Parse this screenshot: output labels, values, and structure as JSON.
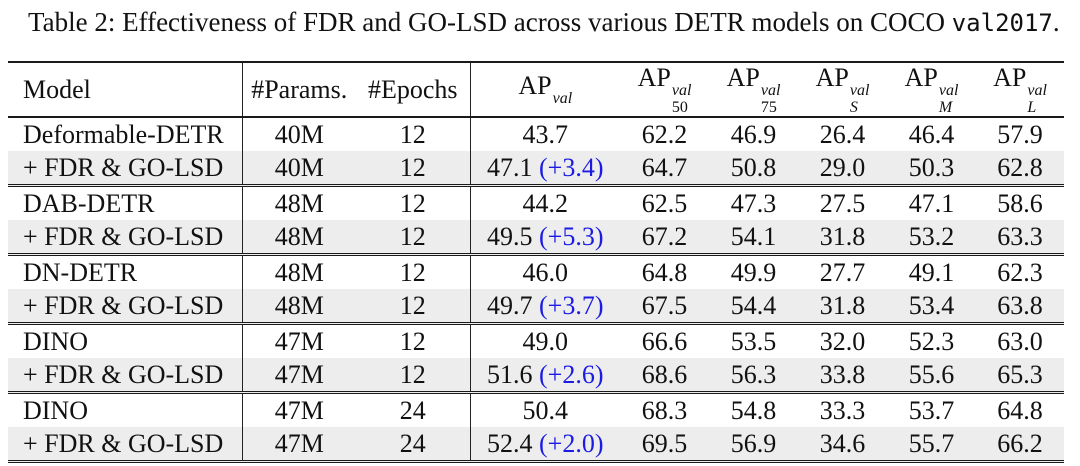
{
  "caption": {
    "prefix": "Table 2: Effectiveness of FDR and GO-LSD across various DETR models on COCO ",
    "code": "val2017",
    "suffix": "."
  },
  "colors": {
    "delta_blue": "#1b1be4",
    "row_shade": "#ededed",
    "rule": "#1a1a1a"
  },
  "table": {
    "columns": [
      "Model",
      "#Params.",
      "#Epochs"
    ],
    "ap_headers": [
      {
        "base": "AP",
        "sup": "val",
        "sub": "",
        "italic_sub": false
      },
      {
        "base": "AP",
        "sup": "val",
        "sub": "50",
        "italic_sub": false
      },
      {
        "base": "AP",
        "sup": "val",
        "sub": "75",
        "italic_sub": false
      },
      {
        "base": "AP",
        "sup": "val",
        "sub": "S",
        "italic_sub": true
      },
      {
        "base": "AP",
        "sup": "val",
        "sub": "M",
        "italic_sub": true
      },
      {
        "base": "AP",
        "sup": "val",
        "sub": "L",
        "italic_sub": true
      }
    ],
    "groups": [
      {
        "rows": [
          {
            "model": "Deformable-DETR",
            "params": "40M",
            "epochs": "12",
            "ap": "43.7",
            "delta": "",
            "ap50": "62.2",
            "ap75": "46.9",
            "aps": "26.4",
            "apm": "46.4",
            "apl": "57.9",
            "shaded": false
          },
          {
            "model": "+ FDR & GO-LSD",
            "params": "40M",
            "epochs": "12",
            "ap": "47.1",
            "delta": "(+3.4)",
            "ap50": "64.7",
            "ap75": "50.8",
            "aps": "29.0",
            "apm": "50.3",
            "apl": "62.8",
            "shaded": true
          }
        ]
      },
      {
        "rows": [
          {
            "model": "DAB-DETR",
            "params": "48M",
            "epochs": "12",
            "ap": "44.2",
            "delta": "",
            "ap50": "62.5",
            "ap75": "47.3",
            "aps": "27.5",
            "apm": "47.1",
            "apl": "58.6",
            "shaded": false
          },
          {
            "model": "+ FDR & GO-LSD",
            "params": "48M",
            "epochs": "12",
            "ap": "49.5",
            "delta": "(+5.3)",
            "ap50": "67.2",
            "ap75": "54.1",
            "aps": "31.8",
            "apm": "53.2",
            "apl": "63.3",
            "shaded": true
          }
        ]
      },
      {
        "rows": [
          {
            "model": "DN-DETR",
            "params": "48M",
            "epochs": "12",
            "ap": "46.0",
            "delta": "",
            "ap50": "64.8",
            "ap75": "49.9",
            "aps": "27.7",
            "apm": "49.1",
            "apl": "62.3",
            "shaded": false
          },
          {
            "model": "+ FDR & GO-LSD",
            "params": "48M",
            "epochs": "12",
            "ap": "49.7",
            "delta": "(+3.7)",
            "ap50": "67.5",
            "ap75": "54.4",
            "aps": "31.8",
            "apm": "53.4",
            "apl": "63.8",
            "shaded": true
          }
        ]
      },
      {
        "rows": [
          {
            "model": "DINO",
            "params": "47M",
            "epochs": "12",
            "ap": "49.0",
            "delta": "",
            "ap50": "66.6",
            "ap75": "53.5",
            "aps": "32.0",
            "apm": "52.3",
            "apl": "63.0",
            "shaded": false
          },
          {
            "model": "+ FDR & GO-LSD",
            "params": "47M",
            "epochs": "12",
            "ap": "51.6",
            "delta": "(+2.6)",
            "ap50": "68.6",
            "ap75": "56.3",
            "aps": "33.8",
            "apm": "55.6",
            "apl": "65.3",
            "shaded": true
          }
        ]
      },
      {
        "rows": [
          {
            "model": "DINO",
            "params": "47M",
            "epochs": "24",
            "ap": "50.4",
            "delta": "",
            "ap50": "68.3",
            "ap75": "54.8",
            "aps": "33.3",
            "apm": "53.7",
            "apl": "64.8",
            "shaded": false
          },
          {
            "model": "+ FDR & GO-LSD",
            "params": "47M",
            "epochs": "24",
            "ap": "52.4",
            "delta": "(+2.0)",
            "ap50": "69.5",
            "ap75": "56.9",
            "aps": "34.6",
            "apm": "55.7",
            "apl": "66.2",
            "shaded": true
          }
        ]
      }
    ]
  }
}
